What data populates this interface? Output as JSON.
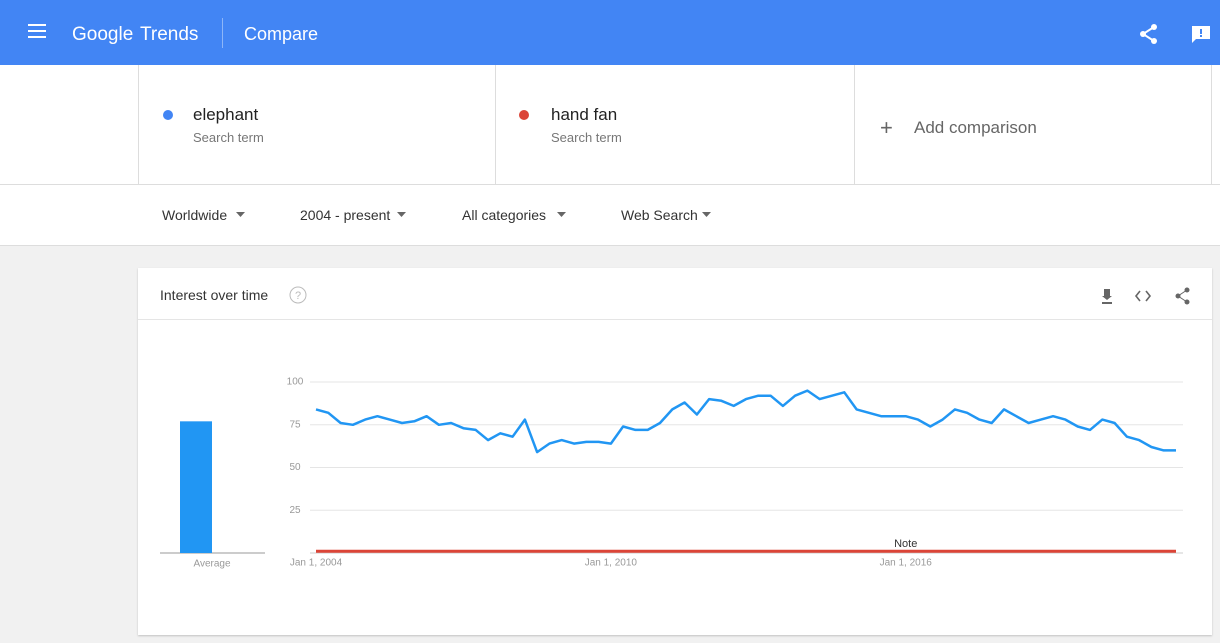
{
  "header": {
    "logo": "Google",
    "product": "Trends",
    "page": "Compare"
  },
  "terms": [
    {
      "name": "elephant",
      "kind": "Search term",
      "color": "#4285f4"
    },
    {
      "name": "hand fan",
      "kind": "Search term",
      "color": "#db4437"
    }
  ],
  "add_comparison": "Add comparison",
  "filters": [
    "Worldwide",
    "2004 - present",
    "All categories",
    "Web Search"
  ],
  "card_title": "Interest over time",
  "chart_data": {
    "type": "line",
    "x": [
      2004,
      2004.25,
      2004.5,
      2004.75,
      2005,
      2005.25,
      2005.5,
      2005.75,
      2006,
      2006.25,
      2006.5,
      2006.75,
      2007,
      2007.25,
      2007.5,
      2007.75,
      2008,
      2008.25,
      2008.5,
      2008.75,
      2009,
      2009.25,
      2009.5,
      2009.75,
      2010,
      2010.25,
      2010.5,
      2010.75,
      2011,
      2011.25,
      2011.5,
      2011.75,
      2012,
      2012.25,
      2012.5,
      2012.75,
      2013,
      2013.25,
      2013.5,
      2013.75,
      2014,
      2014.25,
      2014.5,
      2014.75,
      2015,
      2015.25,
      2015.5,
      2015.75,
      2016,
      2016.25,
      2016.5,
      2016.75,
      2017,
      2017.25,
      2017.5,
      2017.75,
      2018,
      2018.25,
      2018.5,
      2018.75,
      2019,
      2019.25,
      2019.5,
      2019.75,
      2020,
      2020.25,
      2020.5,
      2020.75,
      2021,
      2021.25,
      2021.5
    ],
    "series": [
      {
        "name": "elephant",
        "color": "#2196f3",
        "values": [
          84,
          82,
          76,
          75,
          78,
          80,
          78,
          76,
          77,
          80,
          75,
          76,
          73,
          72,
          66,
          70,
          68,
          78,
          59,
          64,
          66,
          64,
          65,
          65,
          64,
          74,
          72,
          72,
          76,
          84,
          88,
          81,
          90,
          89,
          86,
          90,
          92,
          92,
          86,
          92,
          95,
          90,
          92,
          94,
          84,
          82,
          80,
          80,
          80,
          78,
          74,
          78,
          84,
          82,
          78,
          76,
          84,
          80,
          76,
          78,
          80,
          78,
          74,
          72,
          78,
          76,
          68,
          66,
          62,
          60,
          60
        ]
      },
      {
        "name": "hand fan",
        "color": "#db4437",
        "values": [
          1,
          1,
          1,
          1,
          1,
          1,
          1,
          1,
          1,
          1,
          1,
          1,
          1,
          1,
          1,
          1,
          1,
          1,
          1,
          1,
          1,
          1,
          1,
          1,
          1,
          1,
          1,
          1,
          1,
          1,
          1,
          1,
          1,
          1,
          1,
          1,
          1,
          1,
          1,
          1,
          1,
          1,
          1,
          1,
          1,
          1,
          1,
          1,
          1,
          1,
          1,
          1,
          1,
          1,
          1,
          1,
          1,
          1,
          1,
          1,
          1,
          1,
          1,
          1,
          1,
          1,
          1,
          1,
          1,
          1,
          1
        ]
      }
    ],
    "xlim": [
      2004,
      2021.5
    ],
    "xticks": [
      {
        "value": 2004,
        "label": "Jan 1, 2004"
      },
      {
        "value": 2010,
        "label": "Jan 1, 2010"
      },
      {
        "value": 2016,
        "label": "Jan 1, 2016"
      }
    ],
    "ylim": [
      0,
      100
    ],
    "yticks": [
      25,
      50,
      75,
      100
    ],
    "grid": true,
    "average": {
      "label": "Average",
      "value": 77
    },
    "annotation": {
      "text": "Note",
      "x": 2016
    }
  }
}
